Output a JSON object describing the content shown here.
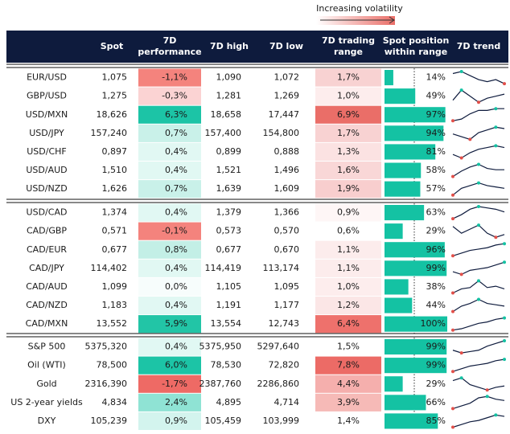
{
  "legend": {
    "label": "Increasing volatility"
  },
  "header": {
    "columns": [
      [],
      [
        "Spot"
      ],
      [
        "7D",
        "performance"
      ],
      [
        "7D high"
      ],
      [
        "7D low"
      ],
      [
        "7D trading",
        "range"
      ],
      [
        "Spot position",
        "within range"
      ],
      [
        "7D trend"
      ]
    ]
  },
  "groups": [
    {
      "rows": [
        {
          "name": "EUR/USD",
          "spot": "1,075",
          "perf": "-1,1%",
          "perf_color": "#f4837d",
          "high": "1,090",
          "low": "1,072",
          "range": "1,7%",
          "range_color": "#f8d2d2",
          "position": 14,
          "position_label": "14%",
          "trend": [
            9,
            10,
            8,
            6,
            5,
            6,
            4
          ]
        },
        {
          "name": "GBP/USD",
          "spot": "1,275",
          "perf": "-0,3%",
          "perf_color": "#fbd3d3",
          "high": "1,281",
          "low": "1,269",
          "range": "1,0%",
          "range_color": "#fdeded",
          "position": 49,
          "position_label": "49%",
          "trend": [
            4,
            9,
            6,
            3,
            5,
            6,
            7
          ]
        },
        {
          "name": "USD/MXN",
          "spot": "18,626",
          "perf": "6,3%",
          "perf_color": "#1cc4a6",
          "high": "18,658",
          "low": "17,447",
          "range": "6,9%",
          "range_color": "#ea6e68",
          "position": 97,
          "position_label": "97%",
          "trend": [
            1,
            2,
            5,
            7,
            7,
            8,
            8
          ]
        },
        {
          "name": "USD/JPY",
          "spot": "157,240",
          "perf": "0,7%",
          "perf_color": "#c9f1e9",
          "high": "157,400",
          "low": "154,800",
          "range": "1,7%",
          "range_color": "#f8d2d2",
          "position": 94,
          "position_label": "94%",
          "trend": [
            5,
            3,
            1,
            6,
            8,
            10,
            9
          ]
        },
        {
          "name": "USD/CHF",
          "spot": "0,897",
          "perf": "0,4%",
          "perf_color": "#e1f8f3",
          "high": "0,899",
          "low": "0,888",
          "range": "1,3%",
          "range_color": "#fbe2e2",
          "position": 81,
          "position_label": "81%",
          "trend": [
            3,
            1,
            4,
            6,
            7,
            8,
            7
          ]
        },
        {
          "name": "USD/AUD",
          "spot": "1,510",
          "perf": "0,4%",
          "perf_color": "#e1f8f3",
          "high": "1,521",
          "low": "1,496",
          "range": "1,6%",
          "range_color": "#f9d7d7",
          "position": 58,
          "position_label": "58%",
          "trend": [
            1,
            5,
            8,
            10,
            7,
            6,
            6
          ]
        },
        {
          "name": "USD/NZD",
          "spot": "1,626",
          "perf": "0,7%",
          "perf_color": "#c9f1e9",
          "high": "1,639",
          "low": "1,609",
          "range": "1,9%",
          "range_color": "#f8cece",
          "position": 57,
          "position_label": "57%",
          "trend": [
            1,
            6,
            8,
            10,
            8,
            7,
            6
          ]
        }
      ]
    },
    {
      "rows": [
        {
          "name": "USD/CAD",
          "spot": "1,374",
          "perf": "0,4%",
          "perf_color": "#e1f8f3",
          "high": "1,379",
          "low": "1,366",
          "range": "0,9%",
          "range_color": "#fef6f6",
          "position": 63,
          "position_label": "63%",
          "trend": [
            1,
            4,
            8,
            10,
            9,
            8,
            6
          ]
        },
        {
          "name": "CAD/GBP",
          "spot": "0,571",
          "perf": "-0,1%",
          "perf_color": "#f4837d",
          "high": "0,573",
          "low": "0,570",
          "range": "0,6%",
          "range_color": "#ffffff",
          "position": 29,
          "position_label": "29%",
          "trend": [
            9,
            4,
            7,
            10,
            4,
            1,
            3
          ]
        },
        {
          "name": "CAD/EUR",
          "spot": "0,677",
          "perf": "0,8%",
          "perf_color": "#c3efe6",
          "high": "0,677",
          "low": "0,670",
          "range": "1,1%",
          "range_color": "#fcecec",
          "position": 96,
          "position_label": "96%",
          "trend": [
            1,
            3,
            5,
            6,
            7,
            9,
            10
          ]
        },
        {
          "name": "CAD/JPY",
          "spot": "114,402",
          "perf": "0,4%",
          "perf_color": "#e1f8f3",
          "high": "114,419",
          "low": "113,174",
          "range": "1,1%",
          "range_color": "#fcecec",
          "position": 99,
          "position_label": "99%",
          "trend": [
            3,
            1,
            4,
            5,
            6,
            8,
            10
          ]
        },
        {
          "name": "CAD/AUD",
          "spot": "1,099",
          "perf": "0,0%",
          "perf_color": "#f7fdfc",
          "high": "1,105",
          "low": "1,095",
          "range": "1,0%",
          "range_color": "#fdeded",
          "position": 38,
          "position_label": "38%",
          "trend": [
            1,
            4,
            5,
            10,
            5,
            6,
            4
          ]
        },
        {
          "name": "CAD/NZD",
          "spot": "1,183",
          "perf": "0,4%",
          "perf_color": "#e1f8f3",
          "high": "1,191",
          "low": "1,177",
          "range": "1,2%",
          "range_color": "#fbe6e6",
          "position": 44,
          "position_label": "44%",
          "trend": [
            1,
            5,
            7,
            10,
            7,
            6,
            5
          ]
        },
        {
          "name": "CAD/MXN",
          "spot": "13,552",
          "perf": "5,9%",
          "perf_color": "#22c5a6",
          "high": "13,554",
          "low": "12,743",
          "range": "6,4%",
          "range_color": "#ee716c",
          "position": 100,
          "position_label": "100%",
          "trend": [
            1,
            2,
            4,
            6,
            7,
            9,
            10
          ]
        }
      ]
    },
    {
      "rows": [
        {
          "name": "S&P 500",
          "spot": "5375,320",
          "perf": "0,4%",
          "perf_color": "#e1f8f3",
          "high": "5375,950",
          "low": "5297,640",
          "range": "1,5%",
          "range_color": "#ffffff",
          "position": 99,
          "position_label": "99%",
          "trend": [
            3,
            1,
            2,
            3,
            6,
            8,
            10
          ]
        },
        {
          "name": "Oil (WTI)",
          "spot": "78,500",
          "perf": "6,0%",
          "perf_color": "#1cc4a6",
          "high": "78,530",
          "low": "72,820",
          "range": "7,8%",
          "range_color": "#ec6b66",
          "position": 99,
          "position_label": "99%",
          "trend": [
            1,
            3,
            5,
            6,
            7,
            9,
            10
          ]
        },
        {
          "name": "Gold",
          "spot": "2316,390",
          "perf": "-1,7%",
          "perf_color": "#ee6a65",
          "high": "2387,760",
          "low": "2286,860",
          "range": "4,4%",
          "range_color": "#f5afad",
          "position": 29,
          "position_label": "29%",
          "trend": [
            8,
            10,
            5,
            3,
            1,
            3,
            4
          ]
        },
        {
          "name": "US 2-year yields",
          "spot": "4,834",
          "perf": "2,4%",
          "perf_color": "#8fe3d4",
          "high": "4,895",
          "low": "4,714",
          "range": "3,9%",
          "range_color": "#f6bab7",
          "position": 66,
          "position_label": "66%",
          "trend": [
            1,
            3,
            5,
            9,
            10,
            8,
            7
          ]
        },
        {
          "name": "DXY",
          "spot": "105,239",
          "perf": "0,9%",
          "perf_color": "#d3f4ee",
          "high": "105,459",
          "low": "103,999",
          "range": "1,4%",
          "range_color": "#ffffff",
          "position": 85,
          "position_label": "85%",
          "trend": [
            1,
            3,
            5,
            6,
            8,
            10,
            9
          ]
        }
      ]
    }
  ]
}
